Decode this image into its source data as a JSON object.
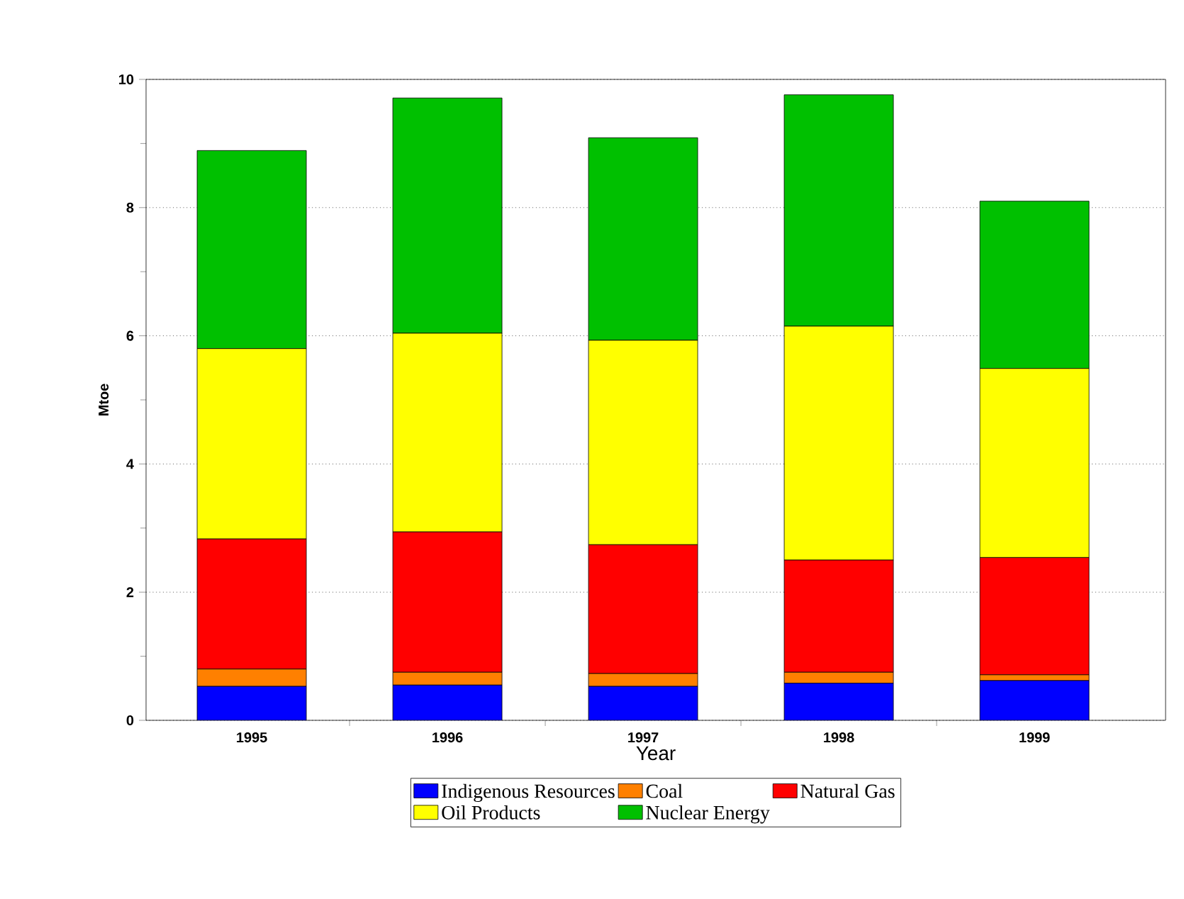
{
  "chart_data": {
    "type": "bar",
    "stacked": true,
    "xlabel": "Year",
    "ylabel": "Mtoe",
    "categories": [
      "1995",
      "1996",
      "1997",
      "1998",
      "1999"
    ],
    "series": [
      {
        "name": "Indigenous Resources",
        "color": "#0000ff",
        "values": [
          0.53,
          0.55,
          0.53,
          0.58,
          0.62
        ]
      },
      {
        "name": "Coal",
        "color": "#ff8000",
        "values": [
          0.27,
          0.2,
          0.2,
          0.17,
          0.09
        ]
      },
      {
        "name": "Natural Gas",
        "color": "#ff0000",
        "values": [
          2.03,
          2.19,
          2.01,
          1.75,
          1.83
        ]
      },
      {
        "name": "Oil Products",
        "color": "#ffff00",
        "values": [
          2.97,
          3.1,
          3.19,
          3.65,
          2.95
        ]
      },
      {
        "name": "Nuclear Energy",
        "color": "#00c000",
        "values": [
          3.09,
          3.67,
          3.16,
          3.61,
          2.61
        ]
      }
    ],
    "ylim": [
      0,
      10
    ],
    "yticks": [
      0,
      2,
      4,
      6,
      8,
      10
    ],
    "grid": "y",
    "legend": "bottom"
  }
}
